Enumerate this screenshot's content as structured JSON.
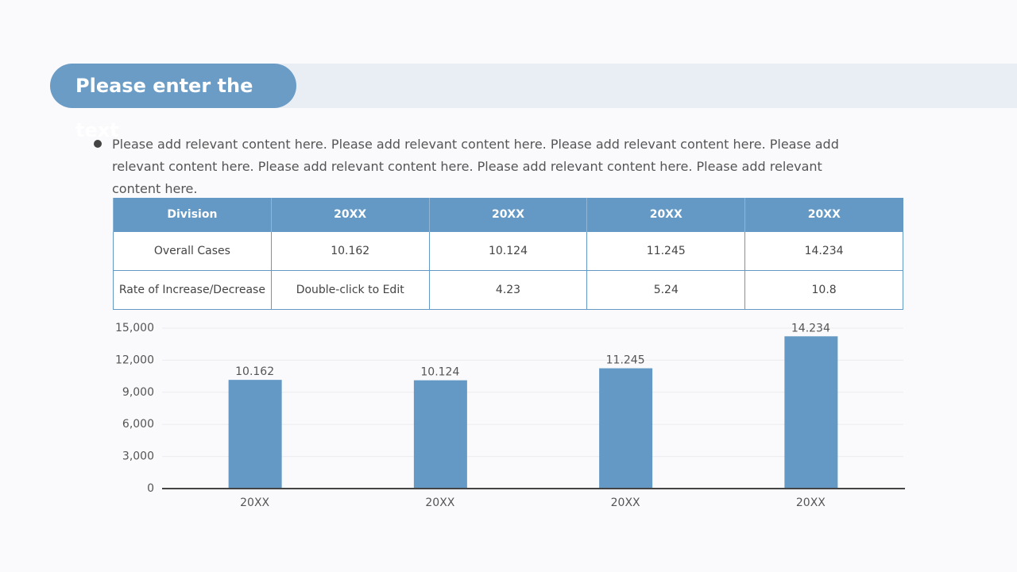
{
  "header": {
    "title": "Please enter the text"
  },
  "body": {
    "bullet": "Please add relevant content here. Please add relevant content here. Please add relevant content here. Please add relevant content here. Please add relevant content here. Please add relevant content here. Please add relevant content here."
  },
  "table": {
    "header": [
      "Division",
      "20XX",
      "20XX",
      "20XX",
      "20XX"
    ],
    "rows": [
      [
        "Overall Cases",
        "10.162",
        "10.124",
        "11.245",
        "14.234"
      ],
      [
        "Rate of Increase/Decrease",
        "Double-click to Edit",
        "4.23",
        "5.24",
        "10.8"
      ]
    ]
  },
  "chart_data": {
    "type": "bar",
    "categories": [
      "20XX",
      "20XX",
      "20XX",
      "20XX"
    ],
    "values": [
      10162,
      10124,
      11245,
      14234
    ],
    "value_labels": [
      "10.162",
      "10.124",
      "11.245",
      "14.234"
    ],
    "color": "#6399c4",
    "ylim": [
      0,
      15000
    ],
    "yticks": [
      0,
      {
        "value": 3000,
        "label": "3,000"
      },
      {
        "value": 6000,
        "label": "6,000"
      },
      {
        "value": 9000,
        "label": "9,000"
      },
      {
        "value": 12000,
        "label": "12,000"
      },
      {
        "value": 15000,
        "label": "15,000"
      }
    ],
    "grid": true
  }
}
